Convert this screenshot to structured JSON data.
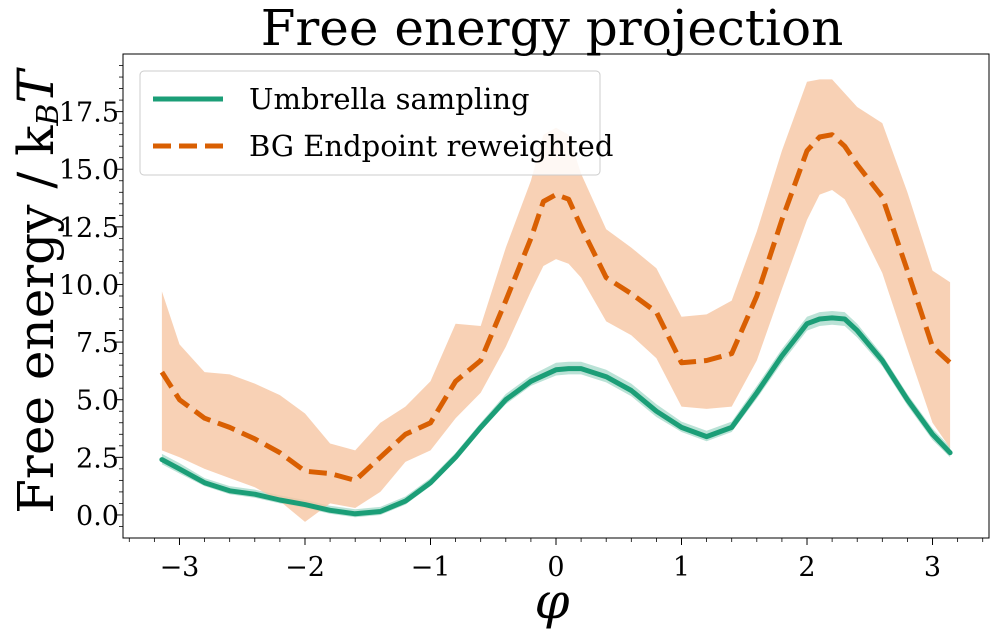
{
  "chart_data": {
    "type": "line",
    "title": "Free energy projection",
    "xlabel": "φ",
    "ylabel": "Free energy / k",
    "ylabel_sub": "B",
    "ylabel_tail": "T",
    "xlim": [
      -3.45,
      3.45
    ],
    "ylim": [
      -1.0,
      20.0
    ],
    "xticks": [
      -3,
      -2,
      -1,
      0,
      1,
      2,
      3
    ],
    "xtick_labels": [
      "−3",
      "−2",
      "−1",
      "0",
      "1",
      "2",
      "3"
    ],
    "yticks": [
      0.0,
      2.5,
      5.0,
      7.5,
      10.0,
      12.5,
      15.0,
      17.5
    ],
    "ytick_labels": [
      "0.0",
      "2.5",
      "5.0",
      "7.5",
      "10.0",
      "12.5",
      "15.0",
      "17.5"
    ],
    "grid": false,
    "legend_position": "top-left",
    "series": [
      {
        "name": "Umbrella sampling",
        "color": "#1b9e77",
        "band_color": "#1b9e77",
        "style": "solid",
        "x": [
          -3.14,
          -3.0,
          -2.8,
          -2.6,
          -2.4,
          -2.2,
          -2.0,
          -1.8,
          -1.6,
          -1.4,
          -1.2,
          -1.0,
          -0.8,
          -0.6,
          -0.4,
          -0.2,
          0.0,
          0.1,
          0.2,
          0.4,
          0.6,
          0.8,
          1.0,
          1.2,
          1.4,
          1.6,
          1.8,
          2.0,
          2.1,
          2.2,
          2.3,
          2.4,
          2.6,
          2.8,
          3.0,
          3.14
        ],
        "y": [
          2.4,
          2.0,
          1.4,
          1.05,
          0.9,
          0.65,
          0.45,
          0.2,
          0.05,
          0.15,
          0.6,
          1.4,
          2.5,
          3.8,
          5.0,
          5.8,
          6.3,
          6.35,
          6.35,
          6.0,
          5.4,
          4.5,
          3.8,
          3.4,
          3.8,
          5.3,
          6.9,
          8.3,
          8.5,
          8.55,
          8.5,
          8.0,
          6.7,
          5.0,
          3.5,
          2.7
        ],
        "lower": [
          2.2,
          1.8,
          1.25,
          0.9,
          0.75,
          0.5,
          0.3,
          0.05,
          -0.1,
          0.0,
          0.45,
          1.25,
          2.35,
          3.65,
          4.8,
          5.6,
          6.05,
          6.1,
          6.1,
          5.75,
          5.15,
          4.25,
          3.6,
          3.2,
          3.6,
          5.05,
          6.6,
          8.0,
          8.2,
          8.25,
          8.2,
          7.7,
          6.45,
          4.75,
          3.25,
          2.5
        ],
        "upper": [
          2.65,
          2.25,
          1.6,
          1.25,
          1.1,
          0.85,
          0.65,
          0.4,
          0.25,
          0.35,
          0.8,
          1.6,
          2.7,
          4.0,
          5.25,
          6.05,
          6.6,
          6.65,
          6.65,
          6.3,
          5.7,
          4.8,
          4.05,
          3.65,
          4.05,
          5.6,
          7.2,
          8.6,
          8.8,
          8.85,
          8.8,
          8.3,
          6.95,
          5.25,
          3.75,
          2.95
        ]
      },
      {
        "name": "BG Endpoint reweighted",
        "color": "#d95f02",
        "band_color": "#f6c6a3",
        "style": "dashed",
        "x": [
          -3.14,
          -3.0,
          -2.8,
          -2.6,
          -2.4,
          -2.2,
          -2.0,
          -1.8,
          -1.6,
          -1.4,
          -1.2,
          -1.0,
          -0.8,
          -0.6,
          -0.4,
          -0.2,
          -0.1,
          0.0,
          0.1,
          0.2,
          0.4,
          0.6,
          0.8,
          1.0,
          1.2,
          1.4,
          1.6,
          1.8,
          2.0,
          2.1,
          2.2,
          2.3,
          2.4,
          2.6,
          2.8,
          3.0,
          3.14
        ],
        "y": [
          6.2,
          5.0,
          4.2,
          3.8,
          3.3,
          2.7,
          1.9,
          1.8,
          1.5,
          2.5,
          3.5,
          4.0,
          5.8,
          6.7,
          9.3,
          12.0,
          13.6,
          13.9,
          13.7,
          12.5,
          10.3,
          9.6,
          8.8,
          6.6,
          6.7,
          7.0,
          9.5,
          12.8,
          15.8,
          16.4,
          16.5,
          16.0,
          15.2,
          13.8,
          10.6,
          7.3,
          6.6
        ],
        "lower": [
          2.8,
          2.5,
          2.0,
          1.6,
          1.2,
          0.6,
          -0.3,
          0.5,
          0.3,
          1.0,
          2.3,
          2.8,
          4.2,
          5.3,
          7.3,
          9.7,
          10.8,
          11.1,
          10.9,
          10.3,
          8.4,
          7.8,
          6.8,
          4.7,
          4.6,
          4.7,
          6.7,
          9.8,
          12.8,
          13.9,
          14.1,
          13.7,
          12.7,
          10.5,
          7.2,
          4.0,
          2.9
        ],
        "upper": [
          9.7,
          7.4,
          6.2,
          6.1,
          5.7,
          5.2,
          4.4,
          3.1,
          2.8,
          4.0,
          4.7,
          5.8,
          8.3,
          8.2,
          11.6,
          14.5,
          16.5,
          16.8,
          16.5,
          14.8,
          12.4,
          11.6,
          10.7,
          8.6,
          8.7,
          9.3,
          12.3,
          15.8,
          18.8,
          18.9,
          18.9,
          18.3,
          17.7,
          17.0,
          14.0,
          10.6,
          10.1
        ]
      }
    ]
  }
}
